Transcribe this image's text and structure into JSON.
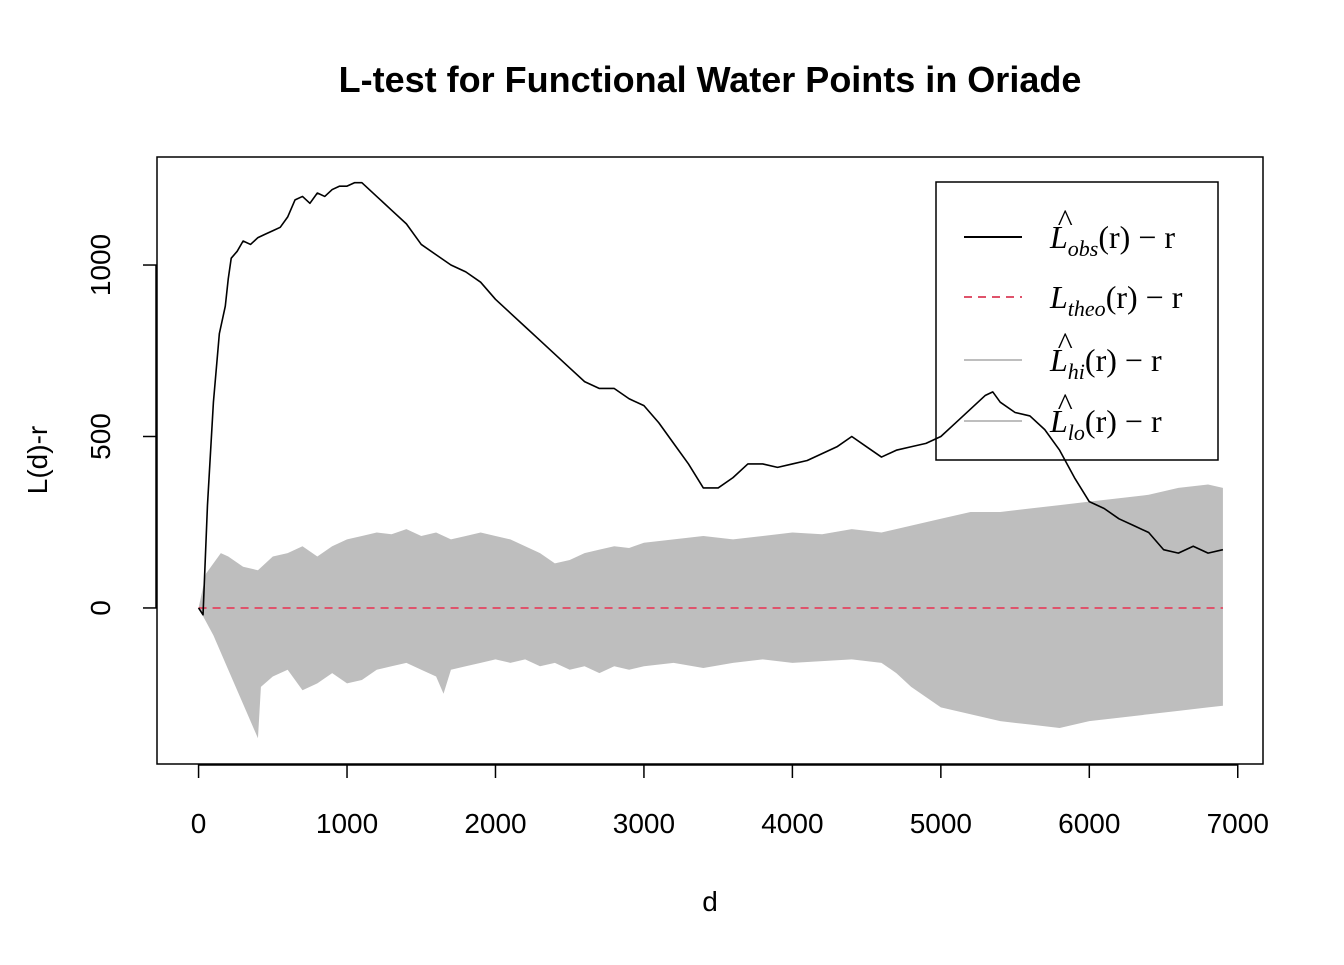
{
  "chart_data": {
    "type": "line",
    "title": "L-test for Functional Water Points in Oriade",
    "xlabel": "d",
    "ylabel": "L(d)-r",
    "xlim": [
      -280,
      7170
    ],
    "ylim": [
      -455,
      1315
    ],
    "x_ticks": [
      0,
      1000,
      2000,
      3000,
      4000,
      5000,
      6000,
      7000
    ],
    "y_ticks": [
      0,
      500,
      1000
    ],
    "grid": false,
    "legend_position": "top-right",
    "colors": {
      "obs": "#000000",
      "theo": "#DF536B",
      "envelope": "#BEBEBE",
      "frame": "#000000"
    },
    "legend": [
      {
        "base": "L",
        "hat": true,
        "sub": "obs",
        "rest": "(r) − r",
        "style": "solid",
        "color": "#000000"
      },
      {
        "base": "L",
        "hat": false,
        "sub": "theo",
        "rest": "(r) − r",
        "style": "dashed",
        "color": "#DF536B"
      },
      {
        "base": "L",
        "hat": true,
        "sub": "hi",
        "rest": "(r) − r",
        "style": "solid",
        "color": "#BEBEBE"
      },
      {
        "base": "L",
        "hat": true,
        "sub": "lo",
        "rest": "(r) − r",
        "style": "solid",
        "color": "#BEBEBE"
      }
    ],
    "series": [
      {
        "name": "obs",
        "x": [
          0,
          30,
          60,
          100,
          140,
          180,
          200,
          220,
          260,
          300,
          350,
          400,
          450,
          500,
          550,
          600,
          650,
          700,
          750,
          800,
          850,
          900,
          950,
          1000,
          1050,
          1100,
          1150,
          1200,
          1300,
          1400,
          1500,
          1600,
          1700,
          1800,
          1900,
          2000,
          2100,
          2200,
          2300,
          2400,
          2500,
          2600,
          2700,
          2800,
          2900,
          3000,
          3100,
          3200,
          3300,
          3400,
          3500,
          3600,
          3700,
          3800,
          3900,
          4000,
          4100,
          4200,
          4300,
          4400,
          4500,
          4600,
          4700,
          4800,
          4900,
          5000,
          5100,
          5200,
          5300,
          5350,
          5400,
          5500,
          5600,
          5700,
          5800,
          5900,
          6000,
          6100,
          6200,
          6300,
          6400,
          6500,
          6600,
          6700,
          6800,
          6900
        ],
        "y": [
          0,
          -20,
          300,
          600,
          800,
          880,
          960,
          1020,
          1040,
          1070,
          1060,
          1080,
          1090,
          1100,
          1110,
          1140,
          1190,
          1200,
          1180,
          1210,
          1200,
          1220,
          1230,
          1230,
          1240,
          1240,
          1220,
          1200,
          1160,
          1120,
          1060,
          1030,
          1000,
          980,
          950,
          900,
          860,
          820,
          780,
          740,
          700,
          660,
          640,
          640,
          610,
          590,
          540,
          480,
          420,
          350,
          350,
          380,
          420,
          420,
          410,
          420,
          430,
          450,
          470,
          500,
          470,
          440,
          460,
          470,
          480,
          500,
          540,
          580,
          620,
          630,
          600,
          570,
          560,
          520,
          460,
          380,
          310,
          290,
          260,
          240,
          220,
          170,
          160,
          180,
          160,
          170
        ]
      },
      {
        "name": "theo",
        "x": [
          0,
          6900
        ],
        "y": [
          0,
          0
        ]
      },
      {
        "name": "hi",
        "x": [
          0,
          50,
          100,
          150,
          200,
          300,
          400,
          500,
          600,
          700,
          800,
          900,
          1000,
          1100,
          1200,
          1300,
          1400,
          1500,
          1600,
          1700,
          1800,
          1900,
          2000,
          2100,
          2200,
          2300,
          2400,
          2500,
          2600,
          2700,
          2800,
          2900,
          3000,
          3200,
          3400,
          3600,
          3800,
          4000,
          4200,
          4400,
          4600,
          4800,
          5000,
          5200,
          5400,
          5600,
          5800,
          6000,
          6200,
          6400,
          6600,
          6800,
          6900
        ],
        "y": [
          0,
          100,
          130,
          160,
          150,
          120,
          110,
          150,
          160,
          180,
          150,
          180,
          200,
          210,
          220,
          215,
          230,
          210,
          220,
          200,
          210,
          220,
          210,
          200,
          180,
          160,
          130,
          140,
          160,
          170,
          180,
          175,
          190,
          200,
          210,
          200,
          210,
          220,
          215,
          230,
          220,
          240,
          260,
          280,
          280,
          290,
          300,
          310,
          320,
          330,
          350,
          360,
          350
        ]
      },
      {
        "name": "lo",
        "x": [
          0,
          50,
          100,
          200,
          300,
          400,
          420,
          500,
          600,
          700,
          800,
          900,
          1000,
          1100,
          1200,
          1300,
          1400,
          1500,
          1600,
          1650,
          1700,
          1800,
          1900,
          2000,
          2100,
          2200,
          2300,
          2400,
          2500,
          2600,
          2700,
          2800,
          2900,
          3000,
          3200,
          3400,
          3600,
          3800,
          4000,
          4200,
          4400,
          4600,
          4700,
          4800,
          4900,
          5000,
          5200,
          5400,
          5600,
          5800,
          6000,
          6200,
          6400,
          6600,
          6800,
          6900
        ],
        "y": [
          0,
          -40,
          -80,
          -180,
          -280,
          -380,
          -230,
          -200,
          -180,
          -240,
          -220,
          -190,
          -220,
          -210,
          -180,
          -170,
          -160,
          -180,
          -200,
          -250,
          -180,
          -170,
          -160,
          -150,
          -160,
          -150,
          -170,
          -160,
          -180,
          -170,
          -190,
          -170,
          -180,
          -170,
          -160,
          -175,
          -160,
          -150,
          -160,
          -155,
          -150,
          -160,
          -190,
          -230,
          -260,
          -290,
          -310,
          -330,
          -340,
          -350,
          -330,
          -320,
          -310,
          -300,
          -290,
          -285
        ]
      }
    ]
  }
}
